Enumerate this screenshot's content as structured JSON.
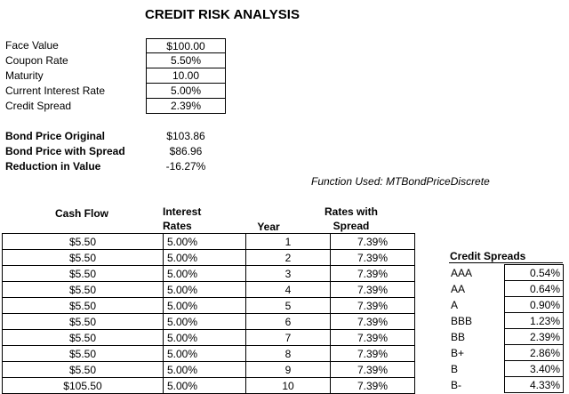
{
  "title": "CREDIT RISK ANALYSIS",
  "inputs": [
    {
      "label": "Face Value",
      "value": "$100.00"
    },
    {
      "label": "Coupon Rate",
      "value": "5.50%"
    },
    {
      "label": "Maturity",
      "value": "10.00"
    },
    {
      "label": "Current Interest Rate",
      "value": "5.00%"
    },
    {
      "label": "Credit Spread",
      "value": "2.39%"
    }
  ],
  "bond": [
    {
      "label": "Bond Price Original",
      "value": "$103.86"
    },
    {
      "label": "Bond Price with Spread",
      "value": "$86.96"
    },
    {
      "label": "Reduction in Value",
      "value": "-16.27%"
    }
  ],
  "function_used": "Function Used: MTBondPriceDiscrete",
  "cashflow_headers": {
    "cash_flow": "Cash Flow",
    "interest_line1": "Interest",
    "interest_line2": "Rates",
    "year": "Year",
    "rates_line1": "Rates with",
    "rates_line2": "Spread"
  },
  "cashflow_rows": [
    [
      "$5.50",
      "5.00%",
      "1",
      "7.39%"
    ],
    [
      "$5.50",
      "5.00%",
      "2",
      "7.39%"
    ],
    [
      "$5.50",
      "5.00%",
      "3",
      "7.39%"
    ],
    [
      "$5.50",
      "5.00%",
      "4",
      "7.39%"
    ],
    [
      "$5.50",
      "5.00%",
      "5",
      "7.39%"
    ],
    [
      "$5.50",
      "5.00%",
      "6",
      "7.39%"
    ],
    [
      "$5.50",
      "5.00%",
      "7",
      "7.39%"
    ],
    [
      "$5.50",
      "5.00%",
      "8",
      "7.39%"
    ],
    [
      "$5.50",
      "5.00%",
      "9",
      "7.39%"
    ],
    [
      "$105.50",
      "5.00%",
      "10",
      "7.39%"
    ]
  ],
  "credit_spreads": {
    "title": "Credit Spreads",
    "rows": [
      [
        "AAA",
        "0.54%"
      ],
      [
        "AA",
        "0.64%"
      ],
      [
        "A",
        "0.90%"
      ],
      [
        "BBB",
        "1.23%"
      ],
      [
        "BB",
        "2.39%"
      ],
      [
        "B+",
        "2.86%"
      ],
      [
        "B",
        "3.40%"
      ],
      [
        "B-",
        "4.33%"
      ]
    ]
  }
}
